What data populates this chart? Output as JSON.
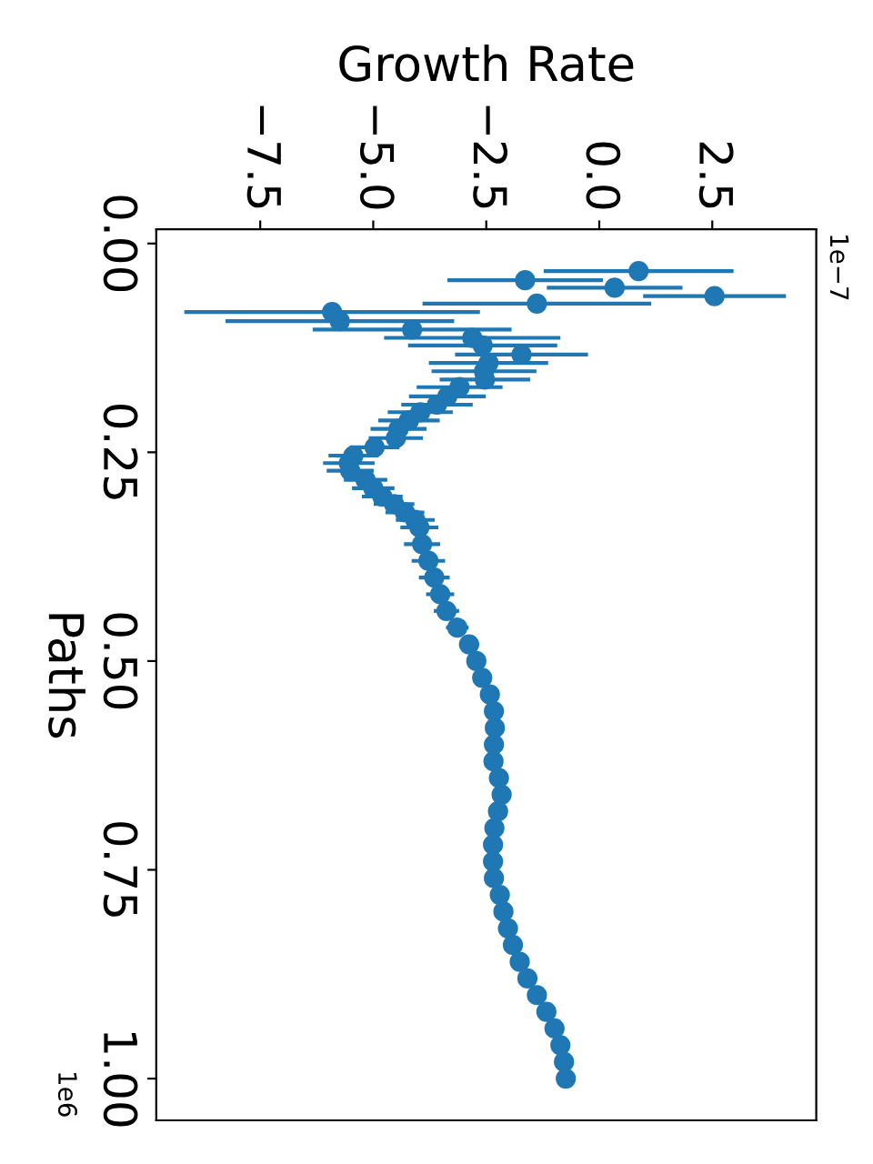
{
  "chart_data": {
    "type": "scatter",
    "xlabel": "Growth Rate",
    "ylabel": "Paths",
    "marker": "circle",
    "annotations": [
      "1e−7",
      "1e6"
    ],
    "xlim": [
      -9.8,
      4.8
    ],
    "xticks": [
      {
        "value": -7.5,
        "label": "−7.5"
      },
      {
        "value": -5.0,
        "label": "−5.0"
      },
      {
        "value": -2.5,
        "label": "−2.5"
      },
      {
        "value": 0.0,
        "label": "0.0"
      },
      {
        "value": 2.5,
        "label": "2.5"
      }
    ],
    "ylim": [
      1.05,
      -0.017
    ],
    "yticks": [
      {
        "value": 0.0,
        "label": "0.00"
      },
      {
        "value": 0.25,
        "label": "0.25"
      },
      {
        "value": 0.5,
        "label": "0.50"
      },
      {
        "value": 0.75,
        "label": "0.75"
      },
      {
        "value": 1.0,
        "label": "1.00"
      }
    ],
    "series": [
      {
        "color": "#1f77b4",
        "x": [
          0.87,
          -1.64,
          0.34,
          2.55,
          -1.38,
          -5.91,
          -5.74,
          -4.14,
          -2.81,
          -2.58,
          -1.72,
          -2.45,
          -2.55,
          -2.53,
          -3.09,
          -3.36,
          -3.59,
          -3.96,
          -4.21,
          -4.44,
          -4.5,
          -4.97,
          -5.44,
          -5.54,
          -5.51,
          -5.17,
          -5.0,
          -4.8,
          -4.54,
          -4.3,
          -4.07,
          -3.98,
          -3.92,
          -3.78,
          -3.65,
          -3.52,
          -3.38,
          -3.14,
          -2.88,
          -2.72,
          -2.59,
          -2.42,
          -2.33,
          -2.31,
          -2.33,
          -2.34,
          -2.22,
          -2.16,
          -2.24,
          -2.32,
          -2.35,
          -2.35,
          -2.33,
          -2.2,
          -2.12,
          -2.02,
          -1.91,
          -1.76,
          -1.59,
          -1.38,
          -1.17,
          -0.99,
          -0.86,
          -0.78,
          -0.74
        ],
        "values": [
          0.033,
          0.044,
          0.053,
          0.063,
          0.072,
          0.082,
          0.093,
          0.103,
          0.113,
          0.122,
          0.133,
          0.143,
          0.153,
          0.163,
          0.172,
          0.183,
          0.193,
          0.202,
          0.212,
          0.222,
          0.233,
          0.244,
          0.254,
          0.263,
          0.272,
          0.283,
          0.293,
          0.303,
          0.312,
          0.322,
          0.331,
          0.34,
          0.36,
          0.38,
          0.4,
          0.42,
          0.44,
          0.46,
          0.48,
          0.5,
          0.52,
          0.54,
          0.56,
          0.58,
          0.6,
          0.62,
          0.64,
          0.66,
          0.68,
          0.7,
          0.72,
          0.74,
          0.76,
          0.78,
          0.8,
          0.82,
          0.84,
          0.86,
          0.88,
          0.9,
          0.92,
          0.94,
          0.96,
          0.98,
          1.0
        ],
        "xerrors": [
          2.1,
          1.72,
          1.5,
          1.58,
          2.53,
          3.27,
          2.53,
          2.2,
          1.95,
          1.65,
          1.47,
          1.32,
          1.16,
          1.0,
          0.95,
          0.85,
          0.79,
          0.72,
          0.68,
          0.62,
          0.6,
          0.55,
          0.55,
          0.57,
          0.52,
          0.48,
          0.47,
          0.45,
          0.45,
          0.43,
          0.43,
          0.42,
          0.4,
          0.37,
          0.34,
          0.31,
          0.28,
          0.25,
          0.22,
          0.2,
          0.18,
          0.16,
          0.14,
          0.12,
          0.11,
          0.1,
          0.1,
          0.1,
          0.09,
          0.09,
          0.09,
          0.08,
          0.08,
          0.08,
          0.08,
          0.07,
          0.07,
          0.07,
          0.07,
          0.06,
          0.06,
          0.06,
          0.06,
          0.06,
          0.05
        ]
      }
    ]
  }
}
